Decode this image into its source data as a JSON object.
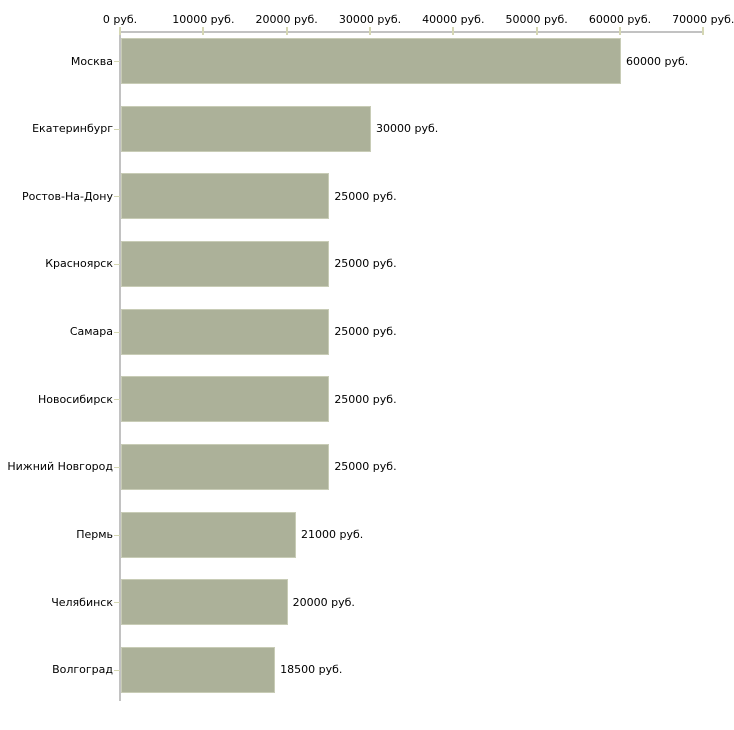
{
  "chart_data": {
    "type": "bar",
    "orientation": "horizontal",
    "unit": "руб.",
    "x_axis": {
      "min": 0,
      "max": 70000,
      "step": 10000,
      "tick_labels": [
        "0 руб.",
        "10000 руб.",
        "20000 руб.",
        "30000 руб.",
        "40000 руб.",
        "50000 руб.",
        "60000 руб.",
        "70000 руб."
      ]
    },
    "categories": [
      "Москва",
      "Екатеринбург",
      "Ростов-На-Дону",
      "Красноярск",
      "Самара",
      "Новосибирск",
      "Нижний Новгород",
      "Пермь",
      "Челябинск",
      "Волгоград"
    ],
    "values": [
      60000,
      30000,
      25000,
      25000,
      25000,
      25000,
      25000,
      21000,
      20000,
      18500
    ],
    "value_labels": [
      "60000 руб.",
      "30000 руб.",
      "25000 руб.",
      "25000 руб.",
      "25000 руб.",
      "25000 руб.",
      "25000 руб.",
      "21000 руб.",
      "20000 руб.",
      "18500 руб."
    ],
    "layout_hints": {
      "grid": false,
      "legend": "none",
      "value_labels_position": "right-of-bar",
      "category_labels_position": "left-of-axis"
    },
    "colors": {
      "bar": "#acb199",
      "bar_border": "#c8ccb6",
      "axis": "#c2c2c2",
      "tick": "#d5d7b3",
      "text": "#000000",
      "background": "#ffffff"
    }
  }
}
